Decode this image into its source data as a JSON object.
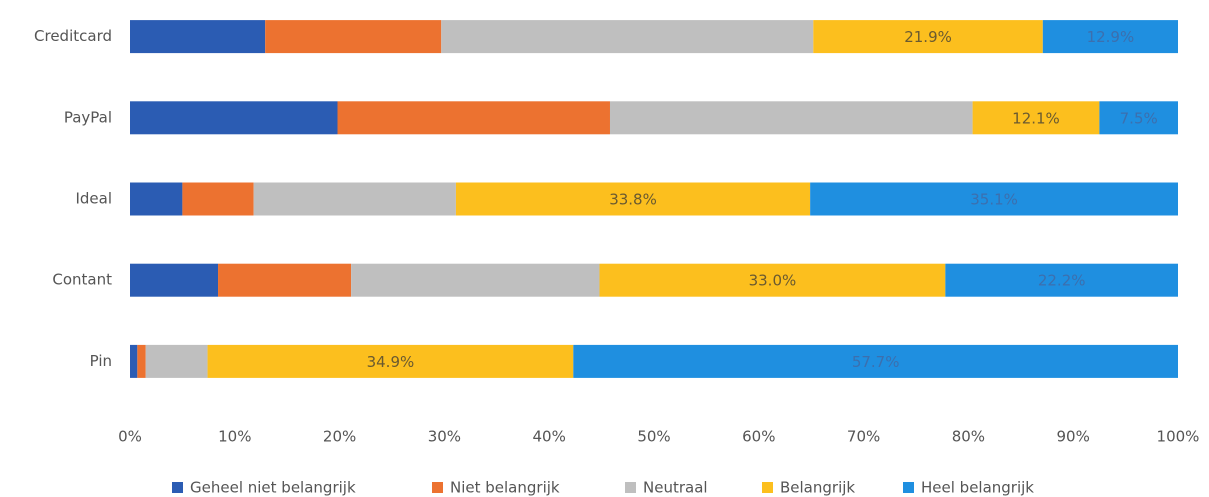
{
  "chart_data": {
    "type": "stacked-barh",
    "categories": [
      "Creditcard",
      "PayPal",
      "Ideal",
      "Contant",
      "Pin"
    ],
    "series": [
      {
        "name": "Geheel niet belangrijk",
        "color": "#2b5cb3",
        "values": [
          12.9,
          19.8,
          5.0,
          8.4,
          0.7
        ]
      },
      {
        "name": "Niet belangrijk",
        "color": "#ec7230",
        "values": [
          16.8,
          26.0,
          6.8,
          12.7,
          0.8
        ]
      },
      {
        "name": "Neutraal",
        "color": "#bfbfbf",
        "values": [
          35.5,
          34.6,
          19.3,
          23.7,
          5.9
        ]
      },
      {
        "name": "Belangrijk",
        "color": "#fcbf1e",
        "values": [
          21.9,
          12.1,
          33.8,
          33.0,
          34.9
        ],
        "value_labels": [
          "21.9%",
          "12.1%",
          "33.8%",
          "33.0%",
          "34.9%"
        ]
      },
      {
        "name": "Heel belangrijk",
        "color": "#1f8fe0",
        "values": [
          12.9,
          7.5,
          35.1,
          22.2,
          57.7
        ],
        "value_labels": [
          "12.9%",
          "7.5%",
          "35.1%",
          "22.2%",
          "57.7%"
        ]
      }
    ],
    "xlim": [
      0,
      100
    ],
    "xticks": [
      {
        "value": 0,
        "label": "0%"
      },
      {
        "value": 10,
        "label": "10%"
      },
      {
        "value": 20,
        "label": "20%"
      },
      {
        "value": 30,
        "label": "30%"
      },
      {
        "value": 40,
        "label": "40%"
      },
      {
        "value": 50,
        "label": "50%"
      },
      {
        "value": 60,
        "label": "60%"
      },
      {
        "value": 70,
        "label": "70%"
      },
      {
        "value": 80,
        "label": "80%"
      },
      {
        "value": 90,
        "label": "90%"
      },
      {
        "value": 100,
        "label": "100%"
      }
    ],
    "legend": "bottom"
  }
}
